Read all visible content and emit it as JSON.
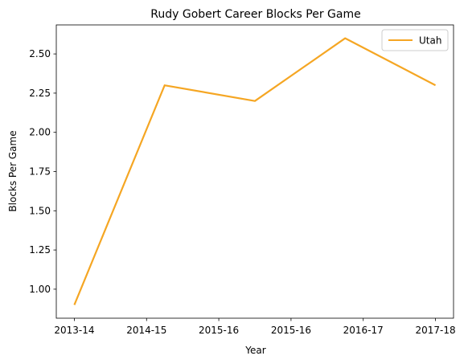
{
  "chart_data": {
    "type": "line",
    "title": "Rudy Gobert Career Blocks Per Game",
    "xlabel": "Year",
    "ylabel": "Blocks Per Game",
    "x": [
      0,
      1.25,
      2.5,
      3.75,
      5
    ],
    "y_ticks": [
      1.0,
      1.25,
      1.5,
      1.75,
      2.0,
      2.25,
      2.5
    ],
    "y_tick_labels": [
      "1.00",
      "1.25",
      "1.50",
      "1.75",
      "2.00",
      "2.25",
      "2.50"
    ],
    "x_ticks": [
      0,
      1,
      2,
      3,
      4,
      5
    ],
    "x_tick_labels": [
      "2013-14",
      "2014-15",
      "2015-16",
      "2015-16",
      "2016-17",
      "2017-18"
    ],
    "xlim": [
      -0.25,
      5.25
    ],
    "ylim": [
      0.815,
      2.685
    ],
    "series": [
      {
        "name": "Utah",
        "color": "#f5a623",
        "x": [
          0,
          1.25,
          2.5,
          3.75,
          5
        ],
        "values": [
          0.9,
          2.3,
          2.2,
          2.6,
          2.3
        ]
      }
    ],
    "legend": {
      "position": "top-right"
    },
    "grid": false
  }
}
